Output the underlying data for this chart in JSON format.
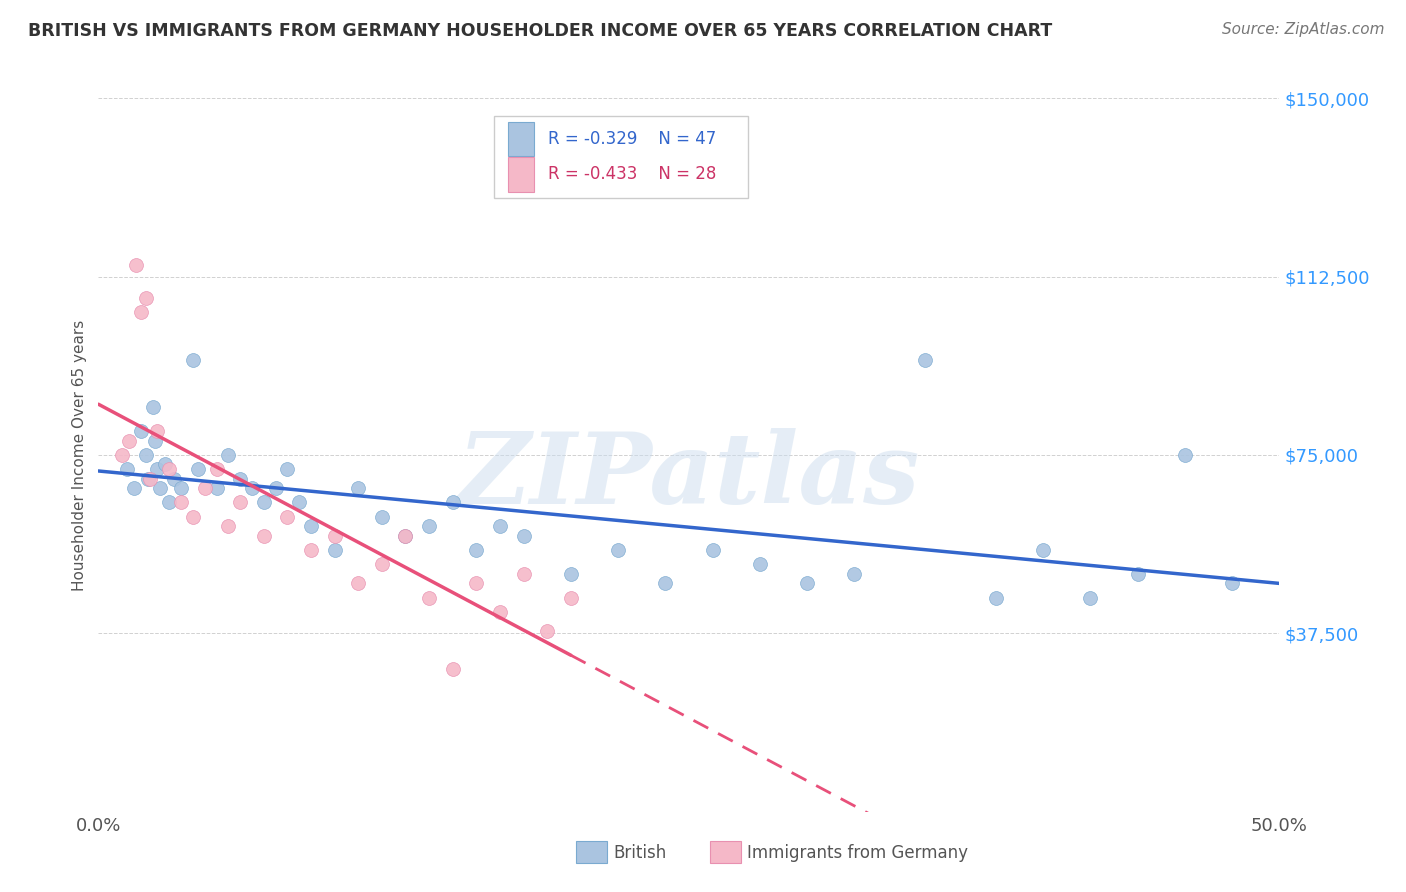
{
  "title": "BRITISH VS IMMIGRANTS FROM GERMANY HOUSEHOLDER INCOME OVER 65 YEARS CORRELATION CHART",
  "source": "Source: ZipAtlas.com",
  "ylabel": "Householder Income Over 65 years",
  "yticks": [
    0,
    37500,
    75000,
    112500,
    150000
  ],
  "ytick_labels": [
    "",
    "$37,500",
    "$75,000",
    "$112,500",
    "$150,000"
  ],
  "xmin": 0.0,
  "xmax": 50.0,
  "ymin": 0,
  "ymax": 150000,
  "british_color": "#aac4e0",
  "german_color": "#f5b8c8",
  "british_edge_color": "#7aaad0",
  "german_edge_color": "#e890b0",
  "british_line_color": "#3366cc",
  "german_line_color": "#e8507a",
  "german_dash_color": "#e8507a",
  "british_R": -0.329,
  "british_N": 47,
  "german_R": -0.433,
  "german_N": 28,
  "legend_british": "British",
  "legend_german": "Immigrants from Germany",
  "watermark": "ZIPatlas",
  "ytick_color": "#3399ff",
  "title_color": "#333333",
  "source_color": "#777777",
  "ylabel_color": "#555555",
  "xtick_color": "#555555",
  "grid_color": "#cccccc",
  "british_x": [
    1.2,
    1.5,
    1.8,
    2.0,
    2.1,
    2.3,
    2.4,
    2.5,
    2.6,
    2.8,
    3.0,
    3.2,
    3.5,
    4.0,
    4.2,
    5.0,
    5.5,
    6.0,
    6.5,
    7.0,
    7.5,
    8.0,
    8.5,
    9.0,
    10.0,
    11.0,
    12.0,
    13.0,
    14.0,
    15.0,
    16.0,
    17.0,
    18.0,
    20.0,
    22.0,
    24.0,
    26.0,
    28.0,
    30.0,
    32.0,
    35.0,
    38.0,
    40.0,
    42.0,
    44.0,
    46.0,
    48.0
  ],
  "british_y": [
    72000,
    68000,
    80000,
    75000,
    70000,
    85000,
    78000,
    72000,
    68000,
    73000,
    65000,
    70000,
    68000,
    95000,
    72000,
    68000,
    75000,
    70000,
    68000,
    65000,
    68000,
    72000,
    65000,
    60000,
    55000,
    68000,
    62000,
    58000,
    60000,
    65000,
    55000,
    60000,
    58000,
    50000,
    55000,
    48000,
    55000,
    52000,
    48000,
    50000,
    95000,
    45000,
    55000,
    45000,
    50000,
    75000,
    48000
  ],
  "german_x": [
    1.0,
    1.3,
    1.6,
    1.8,
    2.0,
    2.2,
    2.5,
    3.0,
    3.5,
    4.0,
    4.5,
    5.0,
    5.5,
    6.0,
    7.0,
    8.0,
    9.0,
    10.0,
    11.0,
    12.0,
    13.0,
    14.0,
    15.0,
    16.0,
    17.0,
    18.0,
    19.0,
    20.0
  ],
  "german_y": [
    75000,
    78000,
    115000,
    105000,
    108000,
    70000,
    80000,
    72000,
    65000,
    62000,
    68000,
    72000,
    60000,
    65000,
    58000,
    62000,
    55000,
    58000,
    48000,
    52000,
    58000,
    45000,
    30000,
    48000,
    42000,
    50000,
    38000,
    45000
  ]
}
